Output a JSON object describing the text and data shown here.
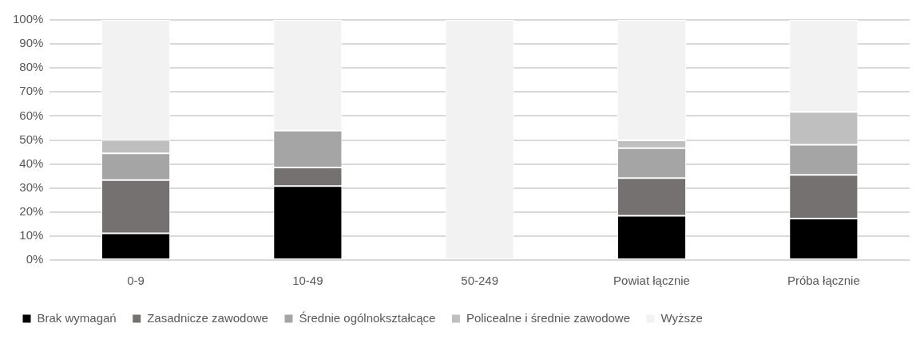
{
  "chart_data": {
    "type": "bar",
    "stacked": true,
    "categories": [
      "0-9",
      "10-49",
      "50-249",
      "Powiat łącznie",
      "Próba łącznie"
    ],
    "series": [
      {
        "name": "Brak wymagań",
        "color": "#000000",
        "values": [
          11.1,
          30.8,
          0,
          18.4,
          17.3
        ]
      },
      {
        "name": "Zasadnicze zawodowe",
        "color": "#767171",
        "values": [
          22.2,
          7.7,
          0,
          15.7,
          18.2
        ]
      },
      {
        "name": "Średnie ogólnokształcące",
        "color": "#a5a5a5",
        "values": [
          11.1,
          15.4,
          0,
          12.5,
          12.5
        ]
      },
      {
        "name": "Policealne i średnie zawodowe",
        "color": "#bfbfbf",
        "values": [
          5.6,
          0,
          0,
          3.2,
          13.7
        ]
      },
      {
        "name": "Wyższe",
        "color": "#f2f2f2",
        "values": [
          50,
          46.1,
          100,
          50.2,
          38.3
        ]
      }
    ],
    "ylim": [
      0,
      100
    ],
    "yticks": [
      {
        "value": 0,
        "label": "0%"
      },
      {
        "value": 10,
        "label": "10%"
      },
      {
        "value": 20,
        "label": "20%"
      },
      {
        "value": 30,
        "label": "30%"
      },
      {
        "value": 40,
        "label": "40%"
      },
      {
        "value": 50,
        "label": "50%"
      },
      {
        "value": 60,
        "label": "60%"
      },
      {
        "value": 70,
        "label": "70%"
      },
      {
        "value": 80,
        "label": "80%"
      },
      {
        "value": 90,
        "label": "90%"
      },
      {
        "value": 100,
        "label": "100%"
      }
    ],
    "grid": "y",
    "legend": "bottom"
  }
}
